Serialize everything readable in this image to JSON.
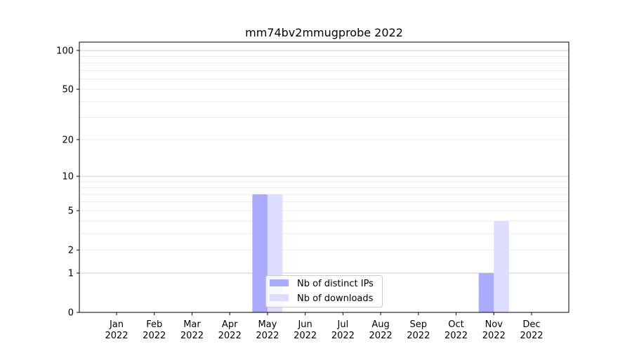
{
  "chart_data": {
    "type": "bar",
    "title": "mm74bv2mmugprobe 2022",
    "xlabel": "",
    "ylabel": "",
    "yscale": "symlog (log of 1+y)",
    "ylim": [
      0,
      116
    ],
    "yticks": [
      0,
      1,
      2,
      5,
      10,
      20,
      50,
      100
    ],
    "grid": true,
    "legend_placement": "lower center",
    "categories": [
      "Jan\n2022",
      "Feb\n2022",
      "Mar\n2022",
      "Apr\n2022",
      "May\n2022",
      "Jun\n2022",
      "Jul\n2022",
      "Aug\n2022",
      "Sep\n2022",
      "Oct\n2022",
      "Nov\n2022",
      "Dec\n2022"
    ],
    "series": [
      {
        "name": "Nb of distinct IPs",
        "color": "#aaaaff",
        "values": [
          0,
          0,
          0,
          0,
          7,
          0,
          0,
          0,
          0,
          0,
          1,
          0
        ]
      },
      {
        "name": "Nb of downloads",
        "color": "#ddddff",
        "values": [
          0,
          0,
          0,
          0,
          7,
          0,
          0,
          0,
          0,
          0,
          4,
          0
        ]
      }
    ]
  }
}
